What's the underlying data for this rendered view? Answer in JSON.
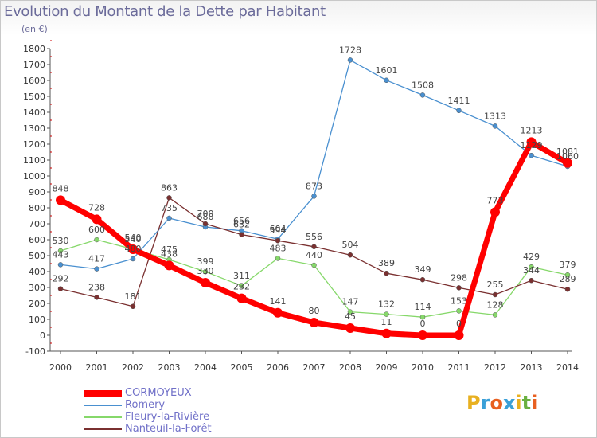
{
  "title": "Evolution du Montant de la Dette par Habitant",
  "unit": "(en €)",
  "brand": {
    "text": "Proxiti",
    "letters": [
      "P",
      "r",
      "o",
      "x",
      "i",
      "t",
      "i"
    ],
    "colors": [
      "#e8b020",
      "#3aa0d8",
      "#e86020",
      "#3aa0d8",
      "#e8b020",
      "#6ab040",
      "#e86020"
    ]
  },
  "chart_data": {
    "type": "line",
    "x": [
      "2000",
      "2001",
      "2002",
      "2003",
      "2004",
      "2005",
      "2006",
      "2007",
      "2008",
      "2009",
      "2010",
      "2011",
      "2012",
      "2013",
      "2014"
    ],
    "ylim": [
      -100,
      1800
    ],
    "yticks": [
      -100,
      0,
      100,
      200,
      300,
      400,
      500,
      600,
      700,
      800,
      900,
      1000,
      1100,
      1200,
      1300,
      1400,
      1500,
      1600,
      1700,
      1800
    ],
    "grid": false,
    "legend_position": "bottom-left",
    "series": [
      {
        "name": "CORMOYEUX",
        "color": "#ff0000",
        "values": [
          848,
          728,
          540,
          438,
          330,
          232,
          141,
          80,
          45,
          11,
          0,
          0,
          773,
          1213,
          1081
        ]
      },
      {
        "name": "Romery",
        "color": "#4a90d0",
        "values": [
          443,
          417,
          480,
          735,
          680,
          656,
          604,
          873,
          1728,
          1601,
          1508,
          1411,
          1313,
          1129,
          1060
        ]
      },
      {
        "name": "Fleury-la-Rivière",
        "color": "#86d86a",
        "values": [
          530,
          600,
          540,
          475,
          399,
          311,
          483,
          440,
          147,
          132,
          114,
          153,
          128,
          429,
          379
        ]
      },
      {
        "name": "Nanteuil-la-Forêt",
        "color": "#7a3030",
        "values": [
          292,
          238,
          181,
          863,
          700,
          632,
          594,
          556,
          504,
          389,
          349,
          298,
          255,
          344,
          289
        ]
      }
    ]
  }
}
